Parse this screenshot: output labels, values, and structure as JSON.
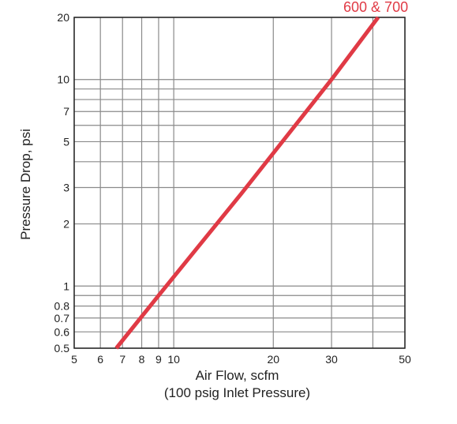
{
  "chart_data": {
    "type": "line",
    "x_scale": "log",
    "y_scale": "log",
    "xlim": [
      5,
      50
    ],
    "ylim": [
      0.5,
      20
    ],
    "grid": true,
    "xlabel": "Air Flow, scfm",
    "xlabel_sub": "(100 psig Inlet Pressure)",
    "ylabel": "Pressure Drop, psi",
    "x_gridlines": [
      5,
      6,
      7,
      8,
      9,
      10,
      20,
      30,
      40,
      50
    ],
    "y_gridlines": [
      0.5,
      0.6,
      0.7,
      0.8,
      0.9,
      1,
      2,
      3,
      4,
      5,
      6,
      7,
      8,
      9,
      10,
      20
    ],
    "x_ticks": [
      {
        "value": 5,
        "label": "5"
      },
      {
        "value": 6,
        "label": "6"
      },
      {
        "value": 7,
        "label": "7"
      },
      {
        "value": 8,
        "label": "8"
      },
      {
        "value": 9,
        "label": "9"
      },
      {
        "value": 10,
        "label": "10"
      },
      {
        "value": 20,
        "label": "20"
      },
      {
        "value": 30,
        "label": "30"
      },
      {
        "value": 50,
        "label": "50"
      }
    ],
    "y_ticks": [
      {
        "value": 0.5,
        "label": "0.5"
      },
      {
        "value": 0.6,
        "label": "0.6"
      },
      {
        "value": 0.7,
        "label": "0.7"
      },
      {
        "value": 0.8,
        "label": "0.8"
      },
      {
        "value": 1,
        "label": "1"
      },
      {
        "value": 2,
        "label": "2"
      },
      {
        "value": 3,
        "label": "3"
      },
      {
        "value": 5,
        "label": "5"
      },
      {
        "value": 7,
        "label": "7"
      },
      {
        "value": 10,
        "label": "10"
      },
      {
        "value": 20,
        "label": "20"
      }
    ],
    "series": [
      {
        "name": "600 & 700",
        "color": "#e03a45",
        "x": [
          6.7,
          9.0,
          16.0,
          30.0,
          41.5
        ],
        "y": [
          0.5,
          0.9,
          2.8,
          10.0,
          20.0
        ]
      }
    ]
  }
}
